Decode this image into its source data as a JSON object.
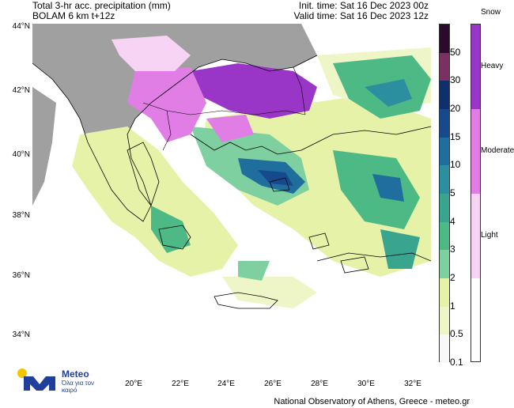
{
  "header": {
    "title_line1": "Total 3-hr acc. precipitation (mm)",
    "title_line2": "BOLAM 6 km t+12z",
    "init_time": "Init. time: Sat 16 Dec 2023 00z",
    "valid_time": "Valid time: Sat 16 Dec 2023 12z"
  },
  "axes": {
    "latitudes": [
      "44°N",
      "42°N",
      "40°N",
      "38°N",
      "36°N",
      "34°N"
    ],
    "longitudes": [
      "20°E",
      "22°E",
      "24°E",
      "26°E",
      "28°E",
      "30°E",
      "32°E"
    ]
  },
  "precip_legend": {
    "labels": [
      "50",
      "30",
      "20",
      "15",
      "10",
      "5",
      "4",
      "3",
      "2",
      "1",
      "0.5",
      "0.1"
    ],
    "colors": [
      "#2b0b2a",
      "#7a3060",
      "#10306b",
      "#174a8c",
      "#1f6e9e",
      "#2b8f9f",
      "#3aa58f",
      "#4dba86",
      "#7fd0a0",
      "#e6f2a8",
      "#eef6c8",
      "#f8f8f8"
    ]
  },
  "snow_legend": {
    "title": "Snow",
    "labels": [
      "Heavy",
      "Moderate",
      "Light"
    ],
    "colors": [
      "#9a36c7",
      "#e07ee6",
      "#f8d4f4"
    ]
  },
  "logo": {
    "name": "Meteo",
    "tagline": "Όλα για τον καιρό",
    "icon": "meteo-m-logo-icon"
  },
  "credit": "National Observatory of Athens, Greece - meteo.gr"
}
